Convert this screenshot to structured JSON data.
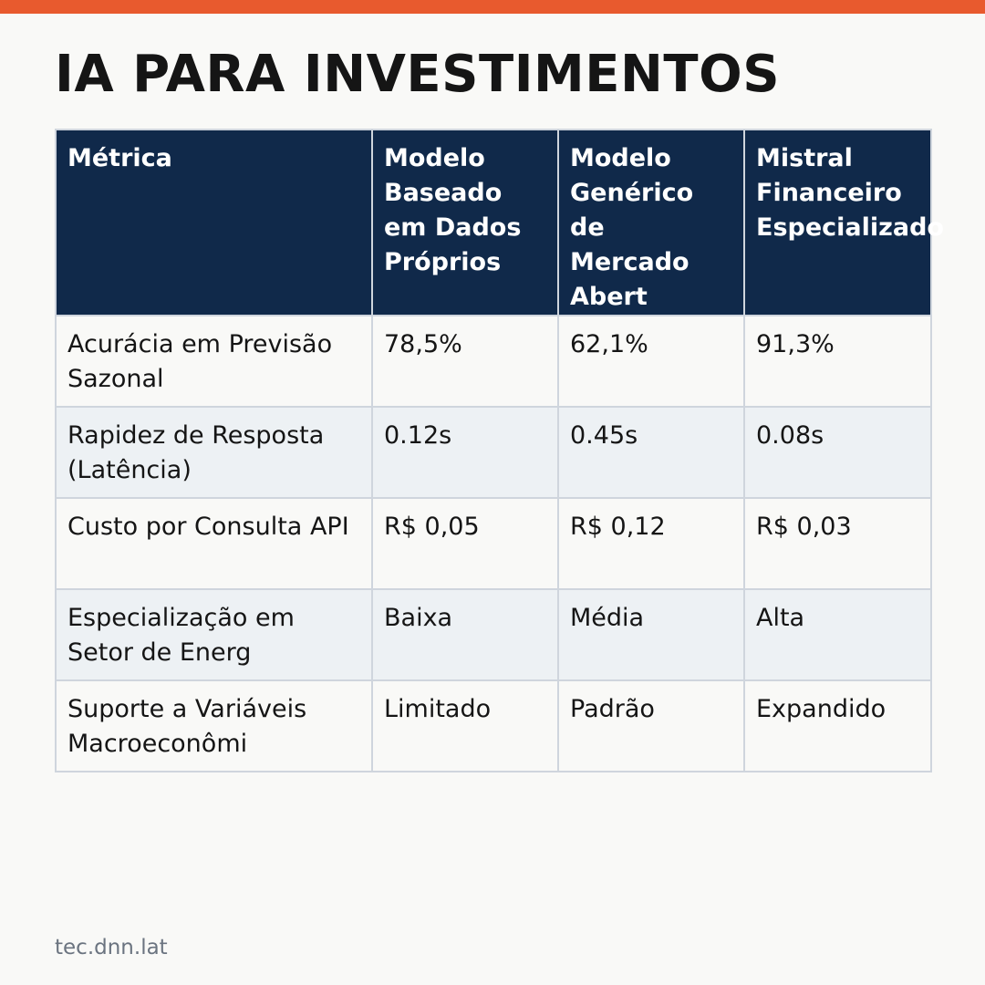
{
  "colors": {
    "accent_bar": "#e85a2e",
    "header_bg": "#10294a",
    "border": "#cfd5dd",
    "row_alt_bg": "#edf1f4",
    "background": "#f9f9f7"
  },
  "title": "IA PARA INVESTIMENTOS",
  "table": {
    "headers": [
      [
        "Métrica"
      ],
      [
        "Modelo",
        "Baseado",
        "em Dados",
        "Próprios"
      ],
      [
        "Modelo",
        "Genérico",
        "de",
        "Mercado",
        "Abert"
      ],
      [
        "Mistral",
        "Financeiro",
        "Especializado"
      ]
    ],
    "rows": [
      [
        "Acurácia em Previsão Sazonal",
        "78,5%",
        "62,1%",
        "91,3%"
      ],
      [
        "Rapidez de Resposta (Latência)",
        "0.12s",
        "0.45s",
        "0.08s"
      ],
      [
        "Custo por Consulta API",
        "R$ 0,05",
        "R$ 0,12",
        "R$ 0,03"
      ],
      [
        "Especialização em Setor de Energ",
        "Baixa",
        "Média",
        "Alta"
      ],
      [
        "Suporte a Variáveis Macroeconômi",
        "Limitado",
        "Padrão",
        "Expandido"
      ]
    ]
  },
  "footer": "tec.dnn.lat"
}
